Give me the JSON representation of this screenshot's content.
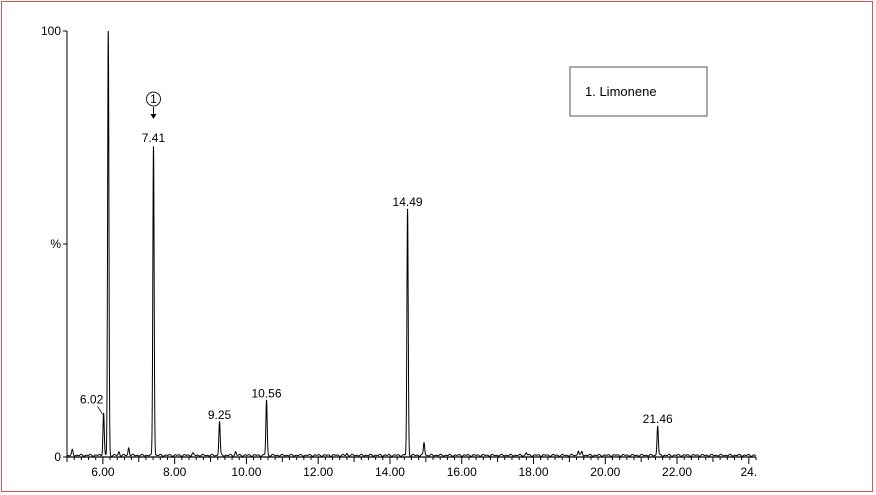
{
  "chart_data": {
    "type": "line",
    "title": "",
    "xlabel": "",
    "ylabel": "%",
    "xlim": [
      5.0,
      24.2
    ],
    "ylim": [
      0,
      100
    ],
    "x_tick_labels": [
      "6.00",
      "8.00",
      "10.00",
      "12.00",
      "14.00",
      "16.00",
      "18.00",
      "20.00",
      "22.00",
      "24."
    ],
    "y_tick_labels": [
      "0",
      "100"
    ],
    "y_mid_label": "%",
    "grid": false,
    "peaks": [
      {
        "label": "6.02",
        "rt": 6.02,
        "intensity": 10
      },
      {
        "label": "",
        "rt": 6.15,
        "intensity": 100
      },
      {
        "label": "7.41",
        "rt": 7.41,
        "intensity": 73
      },
      {
        "label": "9.25",
        "rt": 9.25,
        "intensity": 8
      },
      {
        "label": "10.56",
        "rt": 10.56,
        "intensity": 13
      },
      {
        "label": "14.49",
        "rt": 14.49,
        "intensity": 58
      },
      {
        "label": "",
        "rt": 14.95,
        "intensity": 3
      },
      {
        "label": "21.46",
        "rt": 21.46,
        "intensity": 7
      }
    ],
    "minor_peaks": [
      {
        "rt": 5.15,
        "intensity": 1.2
      },
      {
        "rt": 6.45,
        "intensity": 0.8
      },
      {
        "rt": 6.72,
        "intensity": 1.8
      },
      {
        "rt": 8.5,
        "intensity": 0.5
      },
      {
        "rt": 9.7,
        "intensity": 0.8
      },
      {
        "rt": 12.8,
        "intensity": 0.4
      },
      {
        "rt": 17.8,
        "intensity": 0.6
      },
      {
        "rt": 19.25,
        "intensity": 1.1
      },
      {
        "rt": 19.35,
        "intensity": 0.8
      }
    ],
    "legend": [
      {
        "marker": "1.",
        "name": "Limonene"
      }
    ],
    "annotations": [
      {
        "symbol": "①",
        "target_peak": "7.41"
      }
    ]
  },
  "colors": {
    "trace": "#000000",
    "frame_border": "#d9534f",
    "background": "#ffffff"
  }
}
